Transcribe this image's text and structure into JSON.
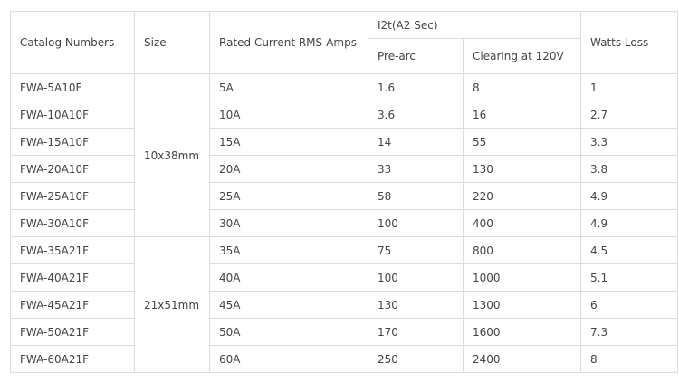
{
  "headers": {
    "catalog": "Catalog Numbers",
    "size": "Size",
    "rated": "Rated Current RMS-Amps",
    "i2t": "I2t(A2 Sec)",
    "prearc": "Pre-arc",
    "clearing": "Clearing at 120V",
    "watts": "Watts Loss"
  },
  "sizes": [
    "10x38mm",
    "21x51mm"
  ],
  "rows": [
    {
      "catalog": "FWA-5A10F",
      "rated": "5A",
      "prearc": "1.6",
      "clearing": "8",
      "watts": "1"
    },
    {
      "catalog": "FWA-10A10F",
      "rated": "10A",
      "prearc": "3.6",
      "clearing": "16",
      "watts": "2.7"
    },
    {
      "catalog": "FWA-15A10F",
      "rated": "15A",
      "prearc": "14",
      "clearing": "55",
      "watts": "3.3"
    },
    {
      "catalog": "FWA-20A10F",
      "rated": "20A",
      "prearc": "33",
      "clearing": "130",
      "watts": "3.8"
    },
    {
      "catalog": "FWA-25A10F",
      "rated": "25A",
      "prearc": "58",
      "clearing": "220",
      "watts": "4.9"
    },
    {
      "catalog": "FWA-30A10F",
      "rated": "30A",
      "prearc": "100",
      "clearing": "400",
      "watts": "4.9"
    },
    {
      "catalog": "FWA-35A21F",
      "rated": "35A",
      "prearc": "75",
      "clearing": "800",
      "watts": "4.5"
    },
    {
      "catalog": "FWA-40A21F",
      "rated": "40A",
      "prearc": "100",
      "clearing": "1000",
      "watts": "5.1"
    },
    {
      "catalog": "FWA-45A21F",
      "rated": "45A",
      "prearc": "130",
      "clearing": "1300",
      "watts": "6"
    },
    {
      "catalog": "FWA-50A21F",
      "rated": "50A",
      "prearc": "170",
      "clearing": "1600",
      "watts": "7.3"
    },
    {
      "catalog": "FWA-60A21F",
      "rated": "60A",
      "prearc": "250",
      "clearing": "2400",
      "watts": "8"
    }
  ]
}
